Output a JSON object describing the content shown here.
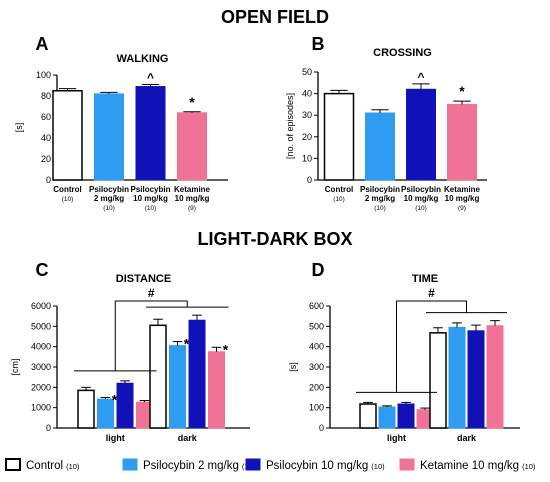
{
  "sections": {
    "open_field": "OPEN FIELD",
    "light_dark": "LIGHT-DARK BOX"
  },
  "colors": {
    "control": "#ffffff",
    "psilocybin2": "#2e9cf0",
    "psilocybin10": "#1111b8",
    "ketamine": "#f07397",
    "axis": "#000000"
  },
  "legend": [
    {
      "label": "Control",
      "n": "(10)",
      "key": "control"
    },
    {
      "label": "Psilocybin 2 mg/kg",
      "n": "(10)",
      "key": "psilocybin2"
    },
    {
      "label": "Psilocybin 10 mg/kg",
      "n": "(10)",
      "key": "psilocybin10"
    },
    {
      "label": "Ketamine 10 mg/kg",
      "n": "(10)",
      "key": "ketamine"
    }
  ],
  "chart_data": [
    {
      "panel": "A",
      "type": "bar",
      "title": "WALKING",
      "ylabel": "[s]",
      "ylim": [
        0,
        100
      ],
      "yticks": [
        0,
        20,
        40,
        60,
        80,
        100
      ],
      "categories": [
        {
          "l1": "Control",
          "l2": "",
          "n": "(10)"
        },
        {
          "l1": "Psilocybin",
          "l2": "2 mg/kg",
          "n": "(10)"
        },
        {
          "l1": "Psilocybin",
          "l2": "10 mg/kg",
          "n": "(10)"
        },
        {
          "l1": "Ketamine",
          "l2": "10 mg/kg",
          "n": "(9)"
        }
      ],
      "keys": [
        "control",
        "psilocybin2",
        "psilocybin10",
        "ketamine"
      ],
      "values": [
        85,
        82,
        89,
        64
      ],
      "errors": [
        2,
        1.5,
        2,
        1
      ],
      "annotations": [
        "",
        "",
        "^",
        "*"
      ]
    },
    {
      "panel": "B",
      "type": "bar",
      "title": "CROSSING",
      "ylabel": "[no. of episodes]",
      "ylim": [
        0,
        50
      ],
      "yticks": [
        0,
        10,
        20,
        30,
        40,
        50
      ],
      "categories": [
        {
          "l1": "Control",
          "l2": "",
          "n": "(10)"
        },
        {
          "l1": "Psilocybin",
          "l2": "2 mg/kg",
          "n": "(10)"
        },
        {
          "l1": "Psilocybin",
          "l2": "10 mg/kg",
          "n": "(10)"
        },
        {
          "l1": "Ketamine",
          "l2": "10 mg/kg",
          "n": "(9)"
        }
      ],
      "keys": [
        "control",
        "psilocybin2",
        "psilocybin10",
        "ketamine"
      ],
      "values": [
        40,
        31,
        42,
        35
      ],
      "errors": [
        1.5,
        1.5,
        2.5,
        1.5
      ],
      "annotations": [
        "",
        "",
        "^",
        "*"
      ]
    },
    {
      "panel": "C",
      "type": "bar",
      "title": "DISTANCE",
      "ylabel": "[cm]",
      "ylim": [
        0,
        6000
      ],
      "yticks": [
        0,
        1000,
        2000,
        3000,
        4000,
        5000,
        6000
      ],
      "groups": [
        "light",
        "dark"
      ],
      "series": [
        {
          "key": "control",
          "values": [
            1850,
            5050
          ],
          "errors": [
            150,
            300
          ],
          "annotations": [
            "",
            ""
          ]
        },
        {
          "key": "psilocybin2",
          "values": [
            1420,
            4050
          ],
          "errors": [
            80,
            200
          ],
          "annotations": [
            "*",
            "*"
          ]
        },
        {
          "key": "psilocybin10",
          "values": [
            2200,
            5300
          ],
          "errors": [
            120,
            250
          ],
          "annotations": [
            "",
            ""
          ]
        },
        {
          "key": "ketamine",
          "values": [
            1270,
            3750
          ],
          "errors": [
            80,
            220
          ],
          "annotations": [
            "*",
            "*"
          ]
        }
      ],
      "bracket_label": "#"
    },
    {
      "panel": "D",
      "type": "bar",
      "title": "TIME",
      "ylabel": "[s]",
      "ylim": [
        0,
        600
      ],
      "yticks": [
        0,
        100,
        200,
        300,
        400,
        500,
        600
      ],
      "groups": [
        "light",
        "dark"
      ],
      "series": [
        {
          "key": "control",
          "values": [
            118,
            468
          ],
          "errors": [
            8,
            25
          ],
          "annotations": [
            "",
            ""
          ]
        },
        {
          "key": "psilocybin2",
          "values": [
            103,
            495
          ],
          "errors": [
            6,
            22
          ],
          "annotations": [
            "",
            ""
          ]
        },
        {
          "key": "psilocybin10",
          "values": [
            118,
            478
          ],
          "errors": [
            8,
            28
          ],
          "annotations": [
            "",
            ""
          ]
        },
        {
          "key": "ketamine",
          "values": [
            90,
            503
          ],
          "errors": [
            8,
            25
          ],
          "annotations": [
            "",
            ""
          ]
        }
      ],
      "bracket_label": "#"
    }
  ]
}
